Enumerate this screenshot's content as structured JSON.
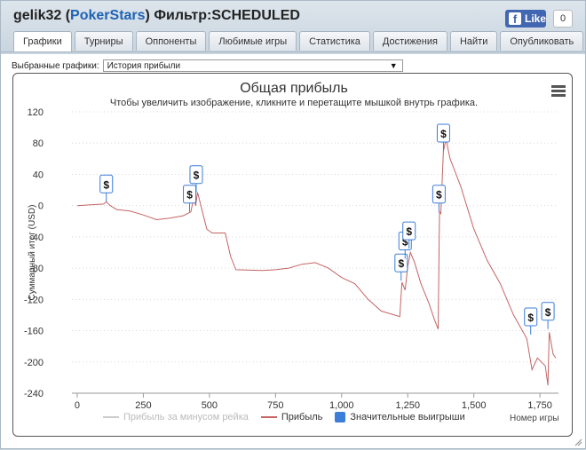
{
  "header": {
    "player": "gelik32",
    "open_paren": "(",
    "site": "PokerStars",
    "close_paren": ")",
    "filter": "Фильтр:SCHEDULED"
  },
  "facebook": {
    "like_label": "Like",
    "fb_glyph": "f",
    "count": "0"
  },
  "tabs": [
    {
      "label": "Графики",
      "active": true
    },
    {
      "label": "Турниры"
    },
    {
      "label": "Оппоненты"
    },
    {
      "label": "Любимые игры"
    },
    {
      "label": "Статистика"
    },
    {
      "label": "Достижения"
    },
    {
      "label": "Найти"
    },
    {
      "label": "Опубликовать"
    }
  ],
  "graph_select": {
    "label": "Выбранные графики:",
    "value": "История прибыли",
    "arrow": "▼"
  },
  "chart_data": {
    "type": "line",
    "title": "Общая прибыль",
    "subtitle": "Чтобы увеличить изображение, кликните и перетащите мышкой внутрь графика.",
    "ylabel": "Суммарный итог (USD)",
    "xlabel": "Номер игры",
    "ylim": [
      -240,
      120
    ],
    "xlim": [
      -20,
      1820
    ],
    "yticks": [
      120,
      80,
      40,
      0,
      -40,
      -80,
      -120,
      -160,
      -200,
      -240
    ],
    "xticks": [
      0,
      250,
      500,
      750,
      1000,
      1250,
      1500,
      1750
    ],
    "xtick_labels": [
      "0",
      "250",
      "500",
      "750",
      "1,000",
      "1,250",
      "1,500",
      "1,750"
    ],
    "grid": true,
    "legend_position": "bottom",
    "series": [
      {
        "name": "Прибыль за минусом рейка",
        "hidden": true,
        "color": "#cccccc",
        "points": []
      },
      {
        "name": "Прибыль",
        "color": "#c46464",
        "points": [
          [
            0,
            0
          ],
          [
            50,
            1
          ],
          [
            100,
            2
          ],
          [
            110,
            5
          ],
          [
            125,
            0
          ],
          [
            150,
            -5
          ],
          [
            200,
            -7
          ],
          [
            250,
            -12
          ],
          [
            300,
            -18
          ],
          [
            350,
            -16
          ],
          [
            400,
            -13
          ],
          [
            430,
            -8
          ],
          [
            440,
            10
          ],
          [
            448,
            0
          ],
          [
            455,
            17
          ],
          [
            470,
            -3
          ],
          [
            490,
            -30
          ],
          [
            510,
            -35
          ],
          [
            560,
            -35
          ],
          [
            580,
            -65
          ],
          [
            600,
            -82
          ],
          [
            700,
            -83
          ],
          [
            750,
            -82
          ],
          [
            800,
            -80
          ],
          [
            850,
            -75
          ],
          [
            900,
            -73
          ],
          [
            950,
            -80
          ],
          [
            1000,
            -92
          ],
          [
            1050,
            -100
          ],
          [
            1100,
            -120
          ],
          [
            1150,
            -135
          ],
          [
            1200,
            -140
          ],
          [
            1220,
            -142
          ],
          [
            1228,
            -98
          ],
          [
            1240,
            -108
          ],
          [
            1250,
            -78
          ],
          [
            1260,
            -60
          ],
          [
            1275,
            -72
          ],
          [
            1300,
            -100
          ],
          [
            1330,
            -125
          ],
          [
            1350,
            -145
          ],
          [
            1365,
            -158
          ],
          [
            1370,
            -8
          ],
          [
            1375,
            -10
          ],
          [
            1385,
            70
          ],
          [
            1395,
            85
          ],
          [
            1410,
            60
          ],
          [
            1450,
            25
          ],
          [
            1500,
            -30
          ],
          [
            1550,
            -70
          ],
          [
            1600,
            -100
          ],
          [
            1650,
            -140
          ],
          [
            1700,
            -170
          ],
          [
            1720,
            -210
          ],
          [
            1740,
            -195
          ],
          [
            1770,
            -205
          ],
          [
            1780,
            -230
          ],
          [
            1785,
            -162
          ],
          [
            1800,
            -190
          ],
          [
            1810,
            -195
          ]
        ]
      }
    ],
    "flags_series": {
      "name": "Значительные выигрыши",
      "color": "#3b7dd8",
      "glyph": "$",
      "points": [
        [
          110,
          5
        ],
        [
          425,
          -8
        ],
        [
          450,
          17
        ],
        [
          1225,
          -96
        ],
        [
          1240,
          -68
        ],
        [
          1255,
          -55
        ],
        [
          1368,
          -8
        ],
        [
          1385,
          70
        ],
        [
          1715,
          -165
        ],
        [
          1780,
          -158
        ]
      ]
    }
  }
}
